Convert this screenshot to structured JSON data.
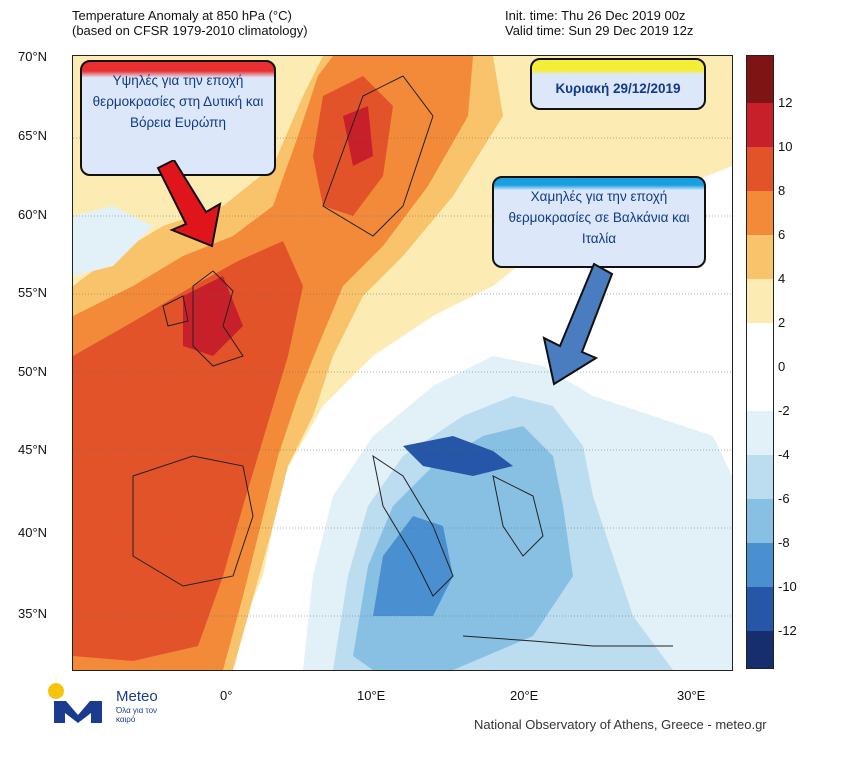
{
  "header": {
    "title_line1": "Temperature Anomaly at 850 hPa (°C)",
    "title_line2": "(based on CFSR 1979-2010 climatology)",
    "init_time": "Init. time: Thu 26 Dec 2019 00z",
    "valid_time": "Valid time: Sun 29 Dec 2019 12z"
  },
  "axes": {
    "lat_labels": [
      "70°N",
      "65°N",
      "60°N",
      "55°N",
      "50°N",
      "45°N",
      "40°N",
      "35°N"
    ],
    "lon_labels": [
      "0°",
      "10°E",
      "20°E",
      "30°E"
    ]
  },
  "colorbar": {
    "labels": [
      "12",
      "10",
      "8",
      "6",
      "4",
      "2",
      "0",
      "-2",
      "-4",
      "-6",
      "-8",
      "-10",
      "-12"
    ],
    "colors": [
      "#7f1414",
      "#c8202a",
      "#e2532a",
      "#f28a3a",
      "#f8c36a",
      "#fcecb4",
      "#ffffff",
      "#e2f0f8",
      "#bcdcf0",
      "#88c0e4",
      "#4a8fcf",
      "#2556a8",
      "#172e6e"
    ]
  },
  "callouts": {
    "high": "Υψηλές για την εποχή θερμοκρασίες στη Δυτική και Βόρεια Ευρώπη",
    "date": "Κυριακή 29/12/2019",
    "low": "Χαμηλές για την εποχή θερμοκρασίες σε Βαλκάνια και Ιταλία"
  },
  "footer": {
    "brand": "Meteo",
    "tagline": "Όλα για τον καιρό",
    "credit": "National Observatory of Athens, Greece - meteo.gr"
  }
}
